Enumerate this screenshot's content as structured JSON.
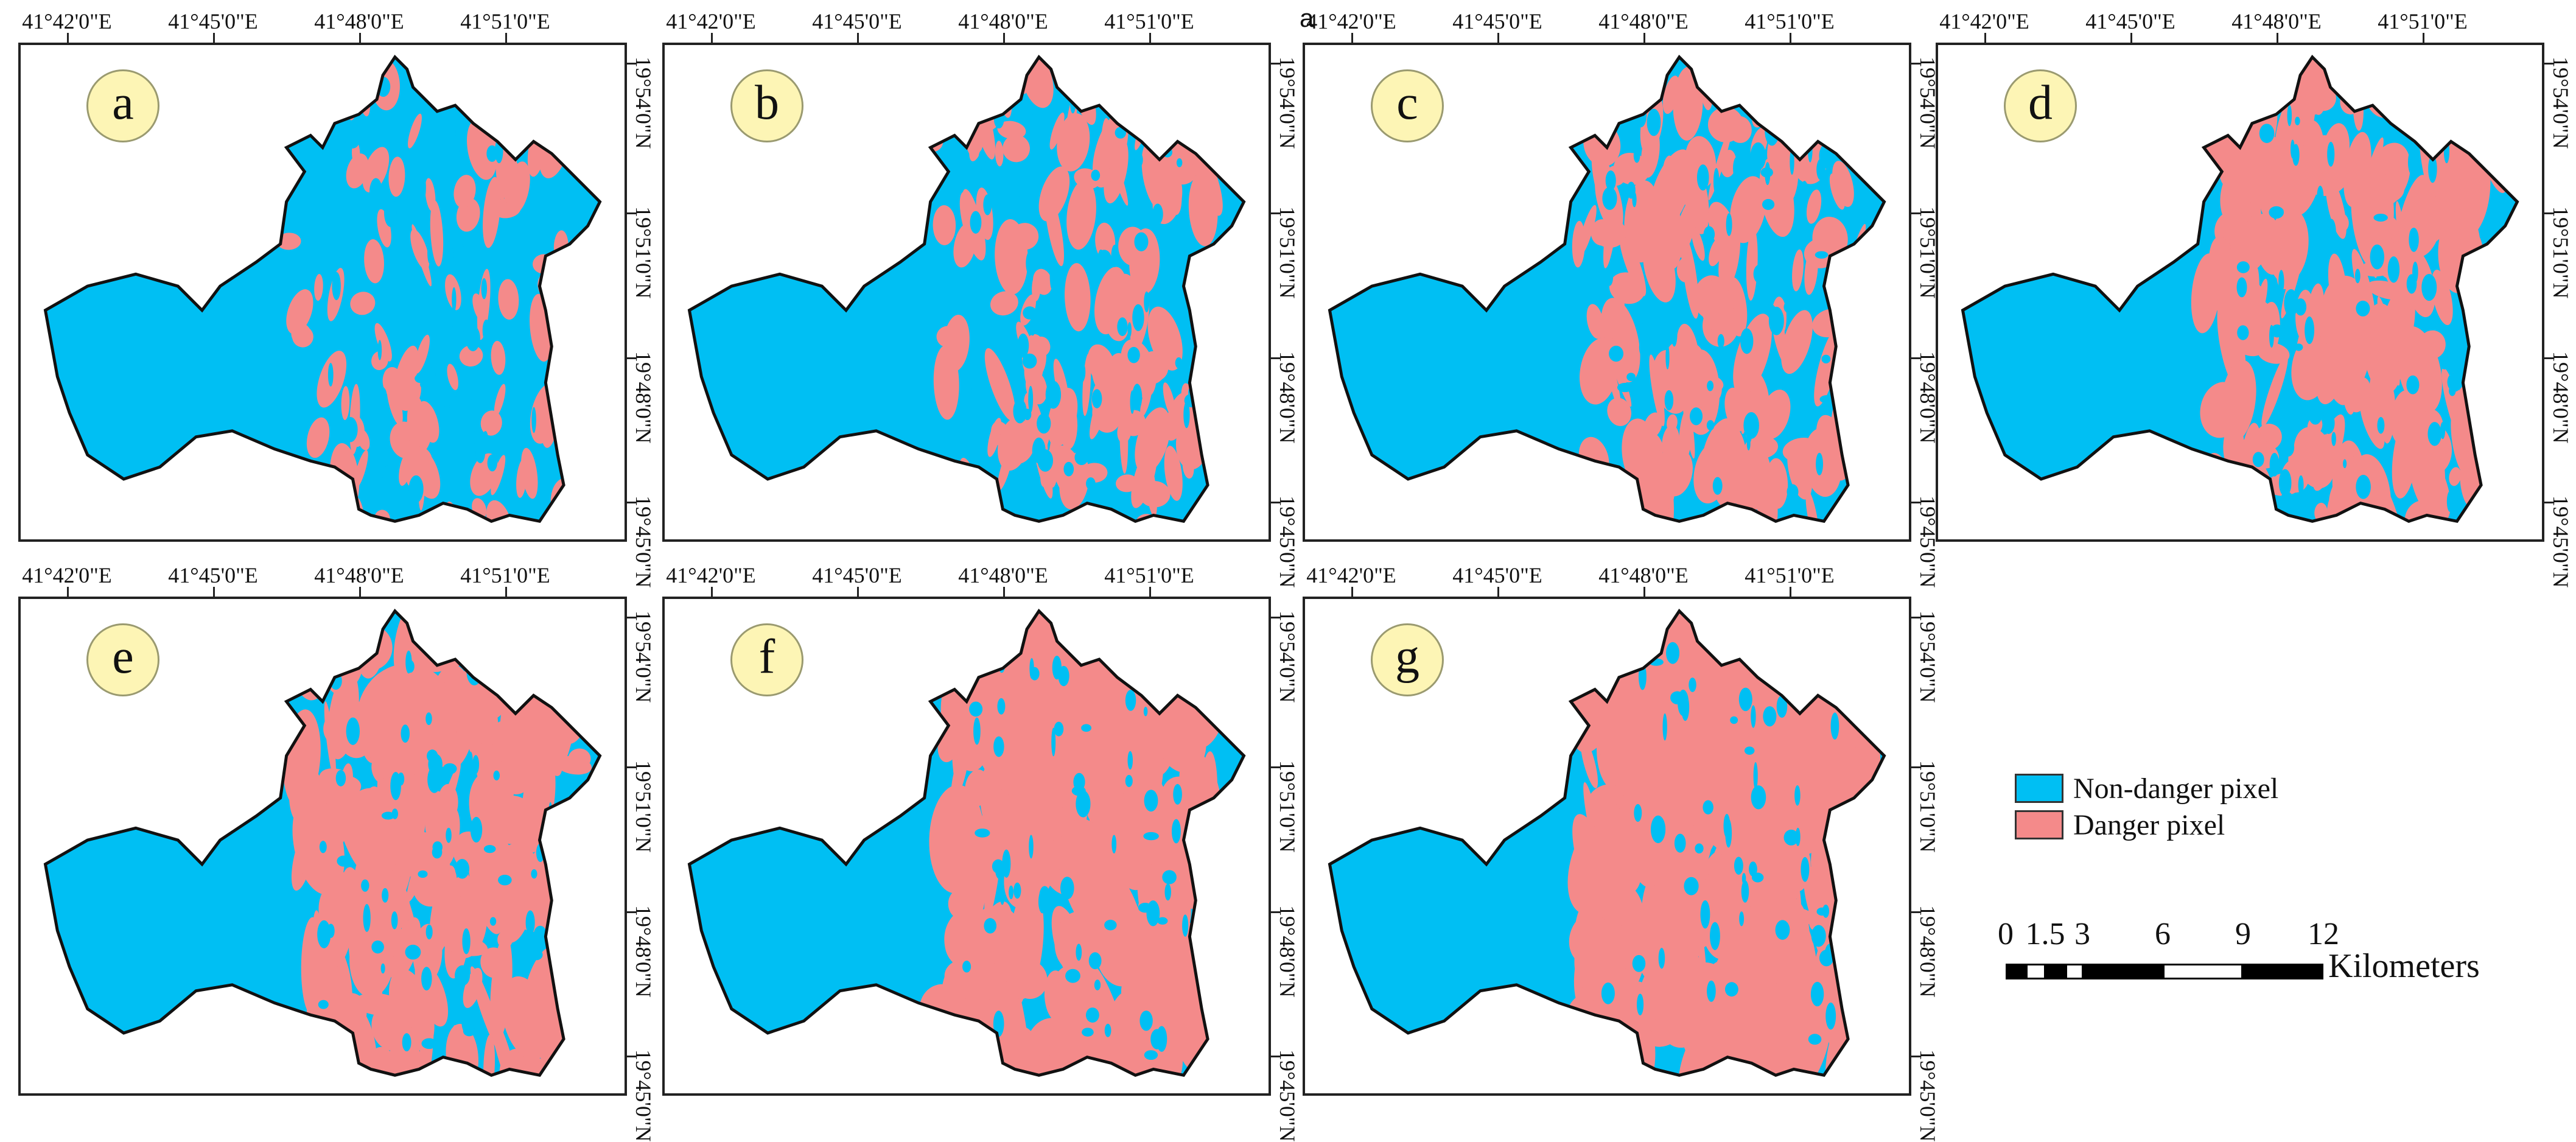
{
  "panels": [
    {
      "label": "a",
      "danger": 0.22
    },
    {
      "label": "b",
      "danger": 0.3
    },
    {
      "label": "c",
      "danger": 0.4
    },
    {
      "label": "d",
      "danger": 0.52
    },
    {
      "label": "e",
      "danger": 0.62
    },
    {
      "label": "f",
      "danger": 0.75
    },
    {
      "label": "g",
      "danger": 0.82
    }
  ],
  "longitude_ticks": [
    "41°42'0\"E",
    "41°45'0\"E",
    "41°48'0\"E",
    "41°51'0\"E"
  ],
  "latitude_ticks": [
    "19°54'0\"N",
    "19°51'0\"N",
    "19°48'0\"N",
    "19°45'0\"N"
  ],
  "stray_label": "a",
  "legend": {
    "items": [
      {
        "label": "Non-danger pixel",
        "color": "#00bff3"
      },
      {
        "label": "Danger pixel",
        "color": "#f48a8a"
      }
    ]
  },
  "scale_bar": {
    "ticks": [
      "0",
      "1.5",
      "3",
      "6",
      "9",
      "12"
    ],
    "unit": "Kilometers"
  },
  "colors": {
    "non_danger": "#00bff3",
    "danger": "#f48a8a",
    "border": "#111111"
  }
}
